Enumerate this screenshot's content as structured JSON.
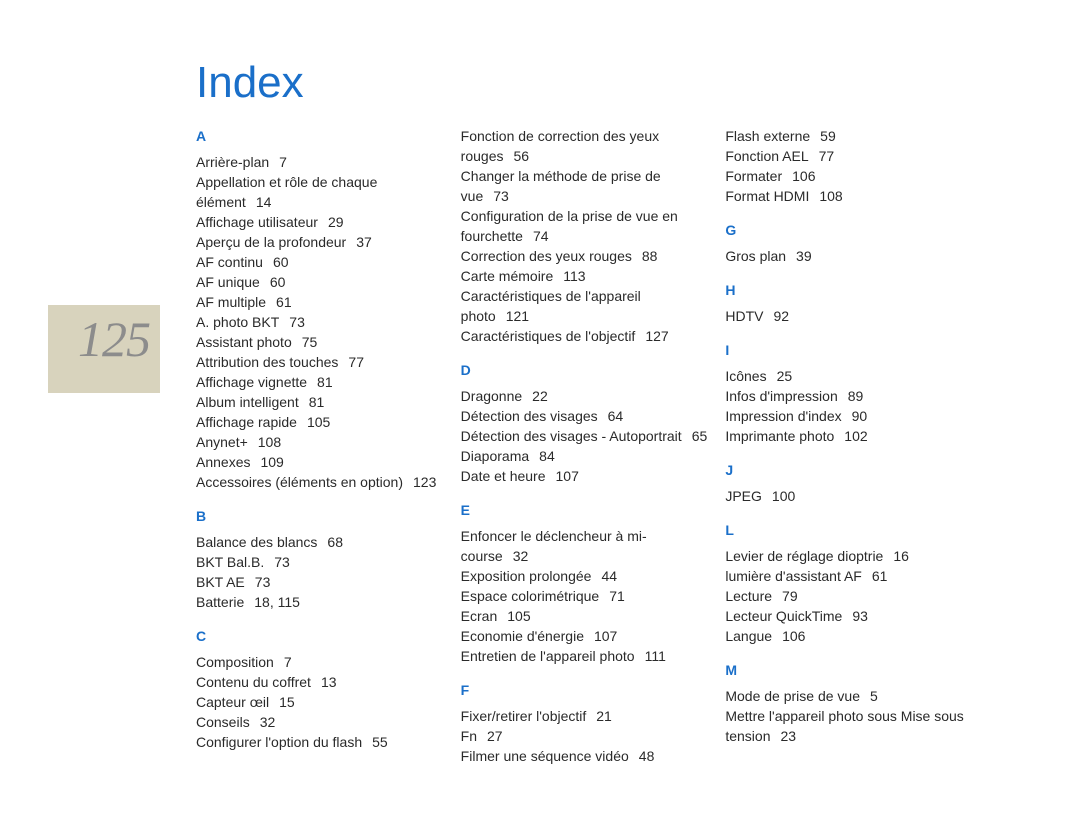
{
  "page_number": "125",
  "title": "Index",
  "colors": {
    "accent": "#1a6fc9",
    "text": "#2a2a2a",
    "page_number": "#8c8c8c",
    "side_block": "#d8d3bd",
    "background": "#ffffff"
  },
  "columns": [
    {
      "groups": [
        {
          "letter": "A",
          "entries": [
            {
              "t": "Arrière-plan",
              "p": "7"
            },
            {
              "t": "Appellation et rôle de chaque élément",
              "p": "14"
            },
            {
              "t": "Affichage utilisateur",
              "p": "29"
            },
            {
              "t": "Aperçu de la profondeur",
              "p": "37"
            },
            {
              "t": "AF continu",
              "p": "60"
            },
            {
              "t": "AF unique",
              "p": "60"
            },
            {
              "t": "AF multiple",
              "p": "61"
            },
            {
              "t": "A. photo BKT",
              "p": "73"
            },
            {
              "t": "Assistant photo",
              "p": "75"
            },
            {
              "t": "Attribution des touches",
              "p": "77"
            },
            {
              "t": "Affichage vignette",
              "p": "81"
            },
            {
              "t": "Album intelligent",
              "p": "81"
            },
            {
              "t": "Affichage rapide",
              "p": "105"
            },
            {
              "t": "Anynet+",
              "p": "108"
            },
            {
              "t": "Annexes",
              "p": "109"
            },
            {
              "t": "Accessoires (éléments en option)",
              "p": "123"
            }
          ]
        },
        {
          "letter": "B",
          "entries": [
            {
              "t": "Balance des blancs",
              "p": "68"
            },
            {
              "t": "BKT Bal.B.",
              "p": "73"
            },
            {
              "t": "BKT AE",
              "p": "73"
            },
            {
              "t": "Batterie",
              "p": "18, 115"
            }
          ]
        },
        {
          "letter": "C",
          "entries": [
            {
              "t": "Composition",
              "p": "7"
            },
            {
              "t": "Contenu du coffret",
              "p": "13"
            },
            {
              "t": "Capteur œil",
              "p": "15"
            },
            {
              "t": "Conseils",
              "p": "32"
            },
            {
              "t": "Configurer l'option du flash",
              "p": "55"
            }
          ]
        }
      ]
    },
    {
      "groups": [
        {
          "letter": "",
          "entries": [
            {
              "t": "Fonction de correction des yeux rouges",
              "p": "56"
            },
            {
              "t": "Changer la méthode de prise de vue",
              "p": "73"
            },
            {
              "t": "Configuration de la prise de vue en fourchette",
              "p": "74"
            },
            {
              "t": "Correction des yeux rouges",
              "p": "88"
            },
            {
              "t": "Carte mémoire",
              "p": "113"
            },
            {
              "t": "Caractéristiques de l'appareil photo",
              "p": "121"
            },
            {
              "t": "Caractéristiques de l'objectif",
              "p": "127"
            }
          ]
        },
        {
          "letter": "D",
          "entries": [
            {
              "t": "Dragonne",
              "p": "22"
            },
            {
              "t": "Détection des visages",
              "p": "64"
            },
            {
              "t": "Détection des visages - Autoportrait",
              "p": "65"
            },
            {
              "t": "Diaporama",
              "p": "84"
            },
            {
              "t": "Date et heure",
              "p": "107"
            }
          ]
        },
        {
          "letter": "E",
          "entries": [
            {
              "t": "Enfoncer le déclencheur à mi-course",
              "p": "32"
            },
            {
              "t": "Exposition prolongée",
              "p": "44"
            },
            {
              "t": "Espace colorimétrique",
              "p": "71"
            },
            {
              "t": "Ecran",
              "p": "105"
            },
            {
              "t": "Economie d'énergie",
              "p": "107"
            },
            {
              "t": "Entretien de l'appareil photo",
              "p": "111"
            }
          ]
        },
        {
          "letter": "F",
          "entries": [
            {
              "t": "Fixer/retirer l'objectif",
              "p": "21"
            },
            {
              "t": "Fn",
              "p": "27"
            },
            {
              "t": "Filmer une séquence vidéo",
              "p": "48"
            }
          ]
        }
      ]
    },
    {
      "groups": [
        {
          "letter": "",
          "entries": [
            {
              "t": "Flash externe",
              "p": "59"
            },
            {
              "t": "Fonction AEL",
              "p": "77"
            },
            {
              "t": "Formater",
              "p": "106"
            },
            {
              "t": "Format HDMI",
              "p": "108"
            }
          ]
        },
        {
          "letter": "G",
          "entries": [
            {
              "t": "Gros plan",
              "p": "39"
            }
          ]
        },
        {
          "letter": "H",
          "entries": [
            {
              "t": "HDTV",
              "p": "92"
            }
          ]
        },
        {
          "letter": "I",
          "entries": [
            {
              "t": "Icônes",
              "p": "25"
            },
            {
              "t": "Infos d'impression",
              "p": "89"
            },
            {
              "t": "Impression d'index",
              "p": "90"
            },
            {
              "t": "Imprimante photo",
              "p": "102"
            }
          ]
        },
        {
          "letter": "J",
          "entries": [
            {
              "t": "JPEG",
              "p": "100"
            }
          ]
        },
        {
          "letter": "L",
          "entries": [
            {
              "t": "Levier de réglage dioptrie",
              "p": "16"
            },
            {
              "t": "lumière d'assistant AF",
              "p": "61"
            },
            {
              "t": "Lecture",
              "p": "79"
            },
            {
              "t": "Lecteur QuickTime",
              "p": "93"
            },
            {
              "t": "Langue",
              "p": "106"
            }
          ]
        },
        {
          "letter": "M",
          "entries": [
            {
              "t": "Mode de prise de vue",
              "p": "5"
            },
            {
              "t": "Mettre l'appareil photo sous Mise sous tension",
              "p": "23"
            }
          ]
        }
      ]
    }
  ]
}
